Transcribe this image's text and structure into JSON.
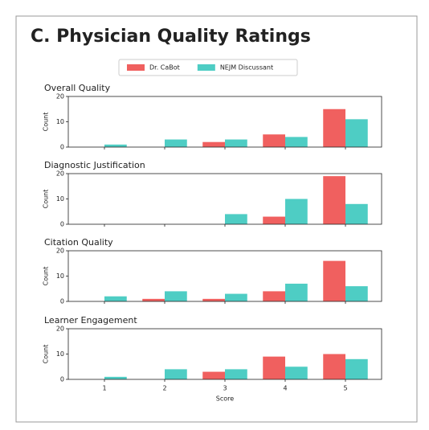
{
  "title": "C. Physician Quality Ratings",
  "legend": {
    "position": "upper center"
  },
  "series": [
    {
      "name": "Dr. CaBot",
      "color": "#f0605f"
    },
    {
      "name": "NEJM Discussant",
      "color": "#4ecdc4"
    }
  ],
  "categories": [
    "1",
    "2",
    "3",
    "4",
    "5"
  ],
  "xlabel": "Score",
  "chart_data": [
    {
      "type": "bar",
      "title": "Overall Quality",
      "ylabel": "Count",
      "ylim": [
        0,
        20
      ],
      "yticks": [
        0,
        10,
        20
      ],
      "series": [
        {
          "values": [
            0,
            0,
            2,
            5,
            15
          ]
        },
        {
          "values": [
            1,
            3,
            3,
            4,
            11
          ]
        }
      ]
    },
    {
      "type": "bar",
      "title": "Diagnostic Justification",
      "ylabel": "Count",
      "ylim": [
        0,
        20
      ],
      "yticks": [
        0,
        10,
        20
      ],
      "series": [
        {
          "values": [
            0,
            0,
            0,
            3,
            19
          ]
        },
        {
          "values": [
            0,
            0,
            4,
            10,
            8
          ]
        }
      ]
    },
    {
      "type": "bar",
      "title": "Citation Quality",
      "ylabel": "Count",
      "ylim": [
        0,
        20
      ],
      "yticks": [
        0,
        10,
        20
      ],
      "series": [
        {
          "values": [
            0,
            1,
            1,
            4,
            16
          ]
        },
        {
          "values": [
            2,
            4,
            3,
            7,
            6
          ]
        }
      ]
    },
    {
      "type": "bar",
      "title": "Learner Engagement",
      "ylabel": "Count",
      "ylim": [
        0,
        20
      ],
      "yticks": [
        0,
        10,
        20
      ],
      "series": [
        {
          "values": [
            0,
            0,
            3,
            9,
            10
          ]
        },
        {
          "values": [
            1,
            4,
            4,
            5,
            8
          ]
        }
      ]
    }
  ]
}
